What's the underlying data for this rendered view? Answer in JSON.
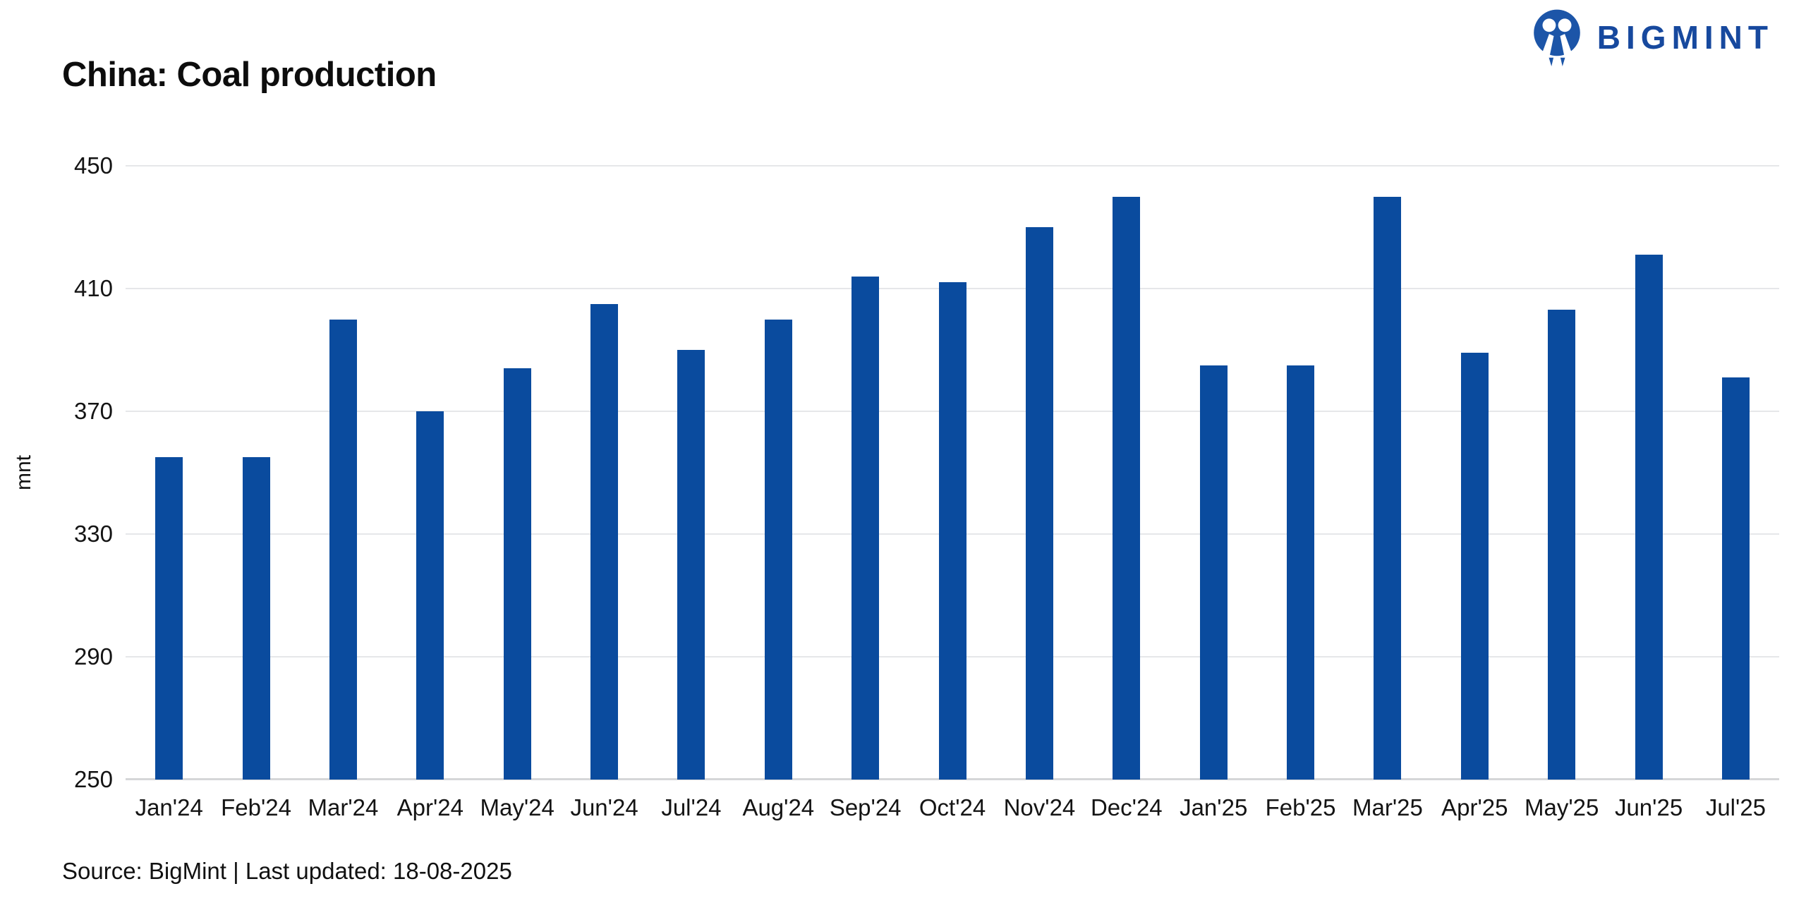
{
  "header": {
    "title": "China: Coal production"
  },
  "logo": {
    "text": "BIGMINT",
    "color": "#17499e"
  },
  "chart_data": {
    "type": "bar",
    "title": "China: Coal production",
    "xlabel": "",
    "ylabel": "mnt",
    "ylim": [
      250,
      450
    ],
    "yticks": [
      250,
      290,
      330,
      370,
      410,
      450
    ],
    "grid": true,
    "legend": "none",
    "bar_color": "#0a4b9e",
    "categories": [
      "Jan'24",
      "Feb'24",
      "Mar'24",
      "Apr'24",
      "May'24",
      "Jun'24",
      "Jul'24",
      "Aug'24",
      "Sep'24",
      "Oct'24",
      "Nov'24",
      "Dec'24",
      "Jan'25",
      "Feb'25",
      "Mar'25",
      "Apr'25",
      "May'25",
      "Jun'25",
      "Jul'25"
    ],
    "values": [
      355,
      355,
      400,
      370,
      384,
      405,
      390,
      400,
      414,
      412,
      430,
      440,
      385,
      385,
      440,
      389,
      403,
      421,
      381
    ]
  },
  "footer": {
    "source": "Source: BigMint | Last updated: 18-08-2025"
  }
}
